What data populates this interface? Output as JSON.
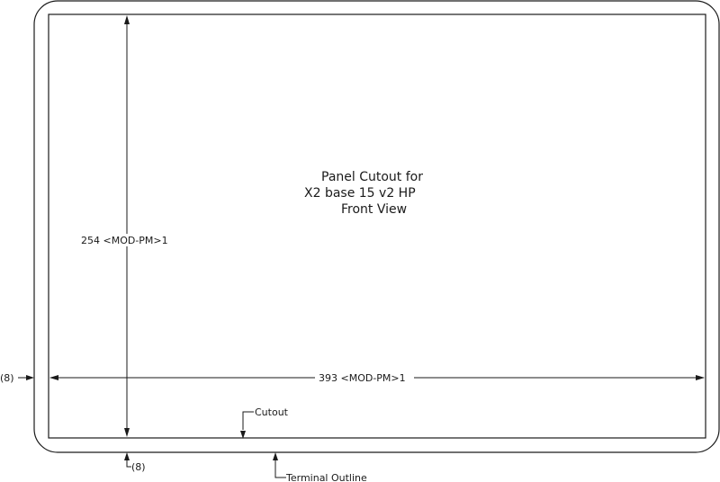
{
  "title": {
    "line1": "Panel Cutout for",
    "line2": "X2 base 15 v2 HP",
    "line3": "Front View"
  },
  "dimensions": {
    "height_label": "254 <MOD-PM>1",
    "width_label": "393 <MOD-PM>1",
    "left_offset_label": "(8)",
    "bottom_offset_label": "(8)"
  },
  "callouts": {
    "cutout": "Cutout",
    "terminal_outline": "Terminal Outline"
  }
}
